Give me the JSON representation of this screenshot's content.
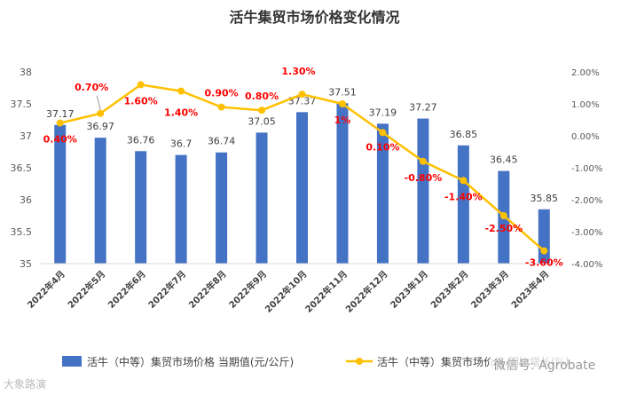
{
  "chart_data": {
    "type": "bar+line",
    "title": "活牛集贸市场价格变化情况",
    "categories": [
      "2022年4月",
      "2022年5月",
      "2022年6月",
      "2022年7月",
      "2022年8月",
      "2022年9月",
      "2022年10月",
      "2022年11月",
      "2022年12月",
      "2023年1月",
      "2023年2月",
      "2023年3月",
      "2023年4月"
    ],
    "series": [
      {
        "name": "活牛（中等）集贸市场价格 当期值(元/公斤)",
        "type": "bar",
        "axis": "left",
        "values": [
          37.17,
          36.97,
          36.76,
          36.7,
          36.74,
          37.05,
          37.37,
          37.51,
          37.19,
          37.27,
          36.85,
          36.45,
          35.85
        ],
        "labels": [
          "37.17",
          "36.97",
          "36.76",
          "36.7",
          "36.74",
          "37.05",
          "37.37",
          "37.51",
          "37.19",
          "37.27",
          "36.85",
          "36.45",
          "35.85"
        ],
        "color": "#4472C4"
      },
      {
        "name": "活牛（中等）集贸市场价格 同比增长(%)",
        "type": "line",
        "axis": "right",
        "values": [
          0.4,
          0.7,
          1.6,
          1.4,
          0.9,
          0.8,
          1.3,
          1.0,
          0.1,
          -0.8,
          -1.4,
          -2.5,
          -3.6
        ],
        "labels": [
          "0.40%",
          "0.70%",
          "1.60%",
          "1.40%",
          "0.90%",
          "0.80%",
          "1.30%",
          "1%",
          "0.10%",
          "-0.80%",
          "-1.40%",
          "-2.50%",
          "-3.60%"
        ],
        "color": "#FFC000",
        "label_color": "#FF0000"
      }
    ],
    "y_left": {
      "min": 35,
      "max": 38,
      "ticks": [
        "35",
        "35.5",
        "36",
        "36.5",
        "37",
        "37.5",
        "38"
      ]
    },
    "y_right": {
      "min": -4,
      "max": 2,
      "ticks": [
        "-4.00%",
        "-3.00%",
        "-2.00%",
        "-1.00%",
        "0.00%",
        "1.00%",
        "2.00%"
      ]
    },
    "legend_position": "bottom",
    "grid": false
  },
  "watermarks": {
    "left": "大象路演",
    "right": "微信号: Agrobate"
  }
}
